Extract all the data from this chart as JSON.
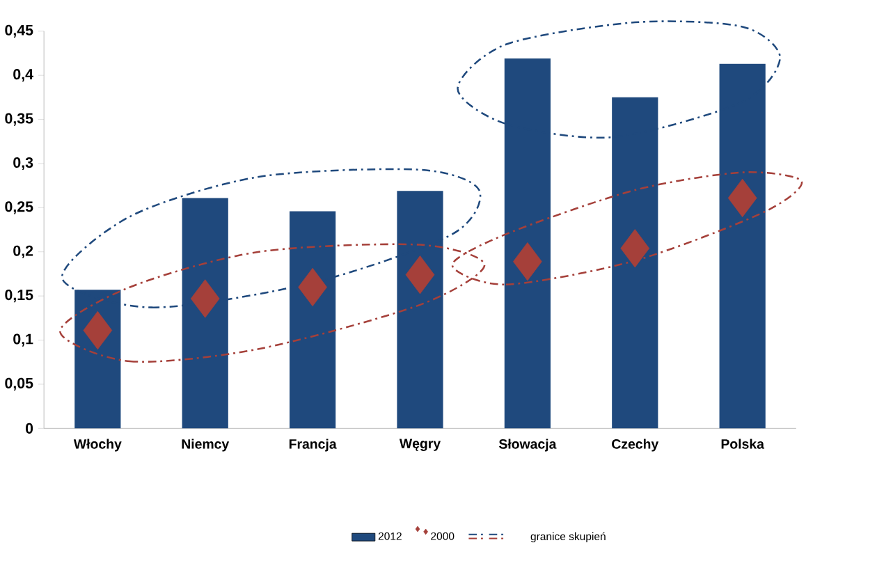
{
  "chart_data": {
    "type": "bar",
    "categories": [
      "Włochy",
      "Niemcy",
      "Francja",
      "Węgry",
      "Słowacja",
      "Czechy",
      "Polska"
    ],
    "series": [
      {
        "name": "2012",
        "color": "#1f497d",
        "values": [
          0.157,
          0.261,
          0.246,
          0.269,
          0.419,
          0.375,
          0.413
        ]
      },
      {
        "name": "2000",
        "type": "scatter",
        "marker": "diamond",
        "color": "#a5403a",
        "values": [
          0.111,
          0.147,
          0.16,
          0.174,
          0.189,
          0.204,
          0.261
        ]
      }
    ],
    "ylim": [
      0,
      0.45
    ],
    "yticks": [
      0,
      {
        "value": 0.05,
        "label": "0,05"
      },
      {
        "value": 0.1,
        "label": "0,1"
      },
      {
        "value": 0.15,
        "label": "0,15"
      },
      {
        "value": 0.2,
        "label": "0,2"
      },
      {
        "value": 0.25,
        "label": "0,25"
      },
      {
        "value": 0.3,
        "label": "0,3"
      },
      {
        "value": 0.35,
        "label": "0,35"
      },
      {
        "value": 0.4,
        "label": "0,4"
      },
      {
        "value": 0.45,
        "label": "0,45"
      }
    ],
    "annotations": [
      "granice skupień"
    ],
    "legend": "bottom"
  }
}
